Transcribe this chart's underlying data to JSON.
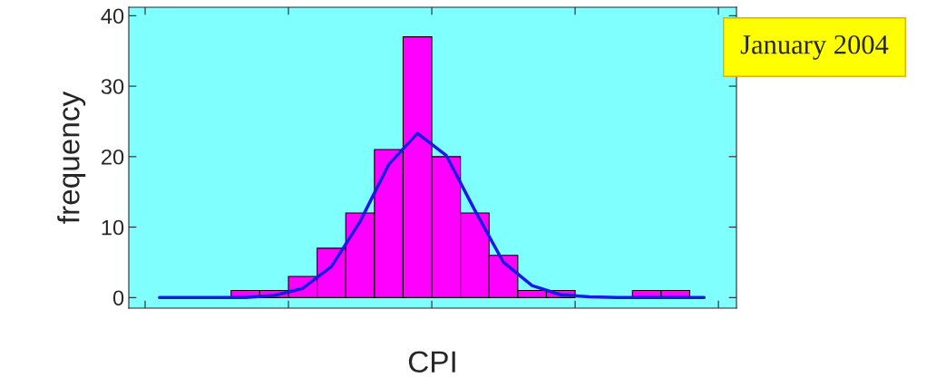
{
  "chart_data": {
    "type": "bar",
    "xlabel": "CPI",
    "ylabel": "frequency",
    "categories": [
      null,
      null,
      null,
      null,
      null,
      null,
      null,
      null,
      null,
      null,
      null,
      null,
      null,
      null,
      null,
      null,
      null,
      null,
      null,
      null
    ],
    "series": [
      {
        "color": "#ff00ff",
        "values": [
          0,
          0,
          0,
          1,
          1,
          3,
          7,
          12,
          21,
          37,
          20,
          12,
          6,
          1,
          1,
          0,
          0,
          1,
          1,
          0
        ]
      },
      {
        "type": "line",
        "color": "#1a1ae6",
        "values": [
          0,
          0,
          0,
          0,
          0.3,
          1.3,
          4.4,
          10.8,
          18.9,
          23.3,
          20.2,
          12.4,
          5,
          1.7,
          0.4,
          0.1,
          0,
          0,
          0,
          0
        ]
      }
    ],
    "ylim": [
      -1.5,
      41.2
    ],
    "yticks": [
      0,
      10,
      20,
      30,
      40
    ],
    "tick_labels": "y",
    "grid": false,
    "annotations": [
      "January 2004"
    ]
  }
}
